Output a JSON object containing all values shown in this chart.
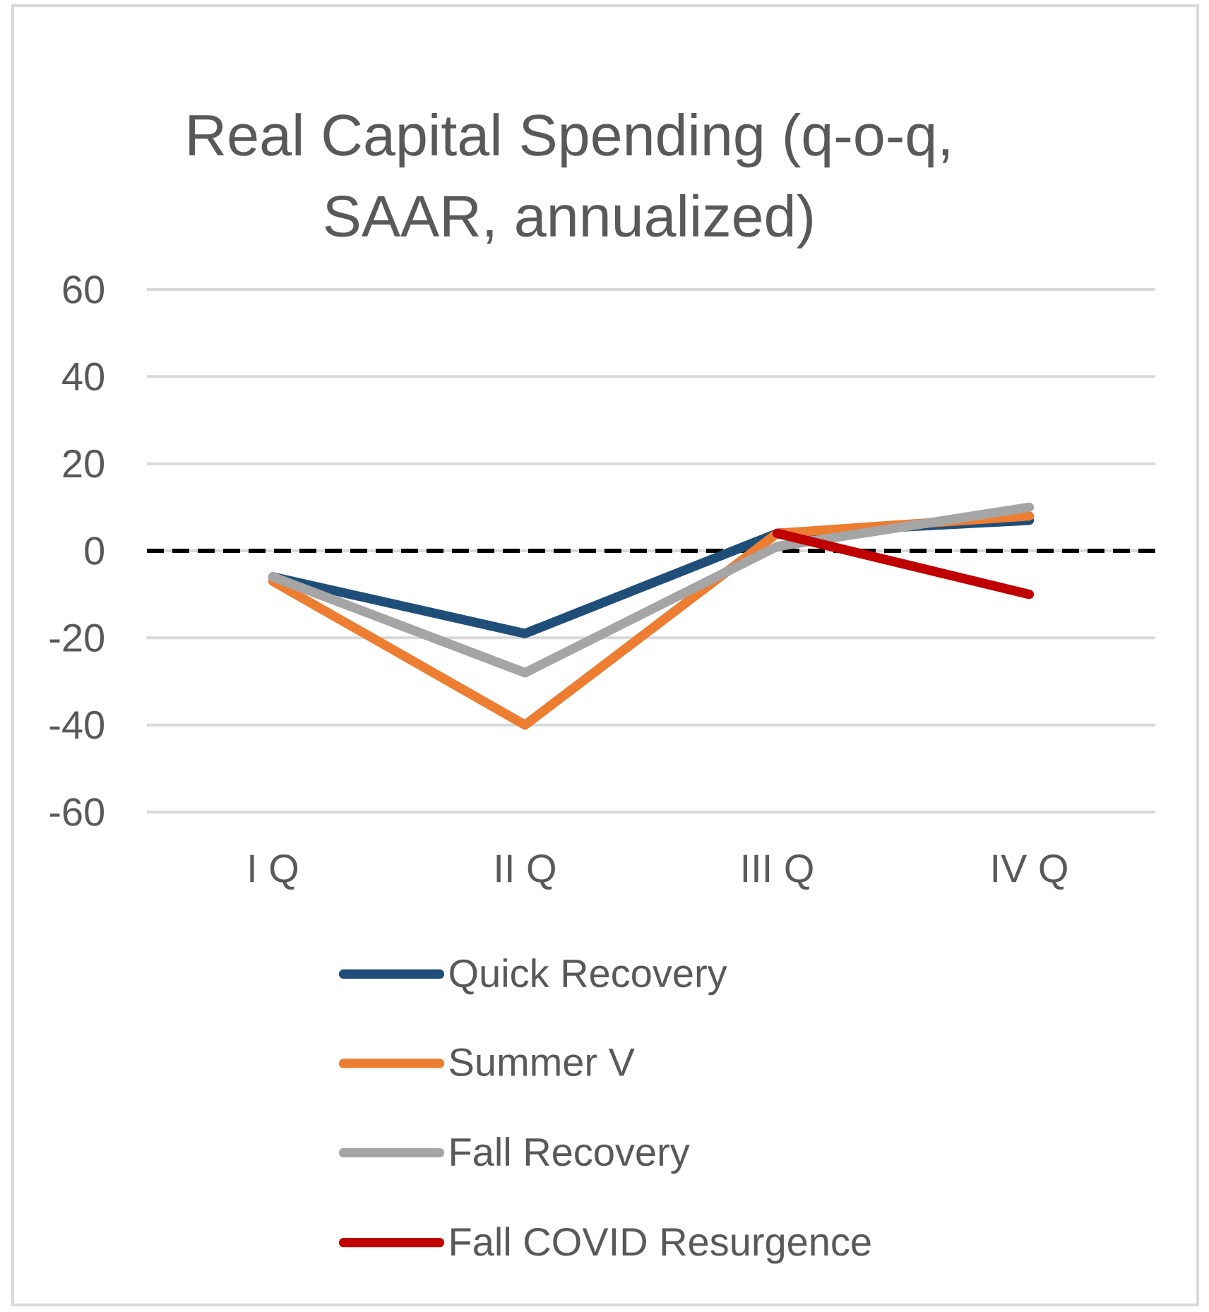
{
  "chart_data": {
    "type": "line",
    "title": "Real Capital Spending (q-o-q, SAAR, annualized)",
    "categories": [
      "I Q",
      "II Q",
      "III Q",
      "IV Q"
    ],
    "series": [
      {
        "name": "Quick Recovery",
        "color": "#1f4e79",
        "values": [
          -6,
          -19,
          4,
          7
        ]
      },
      {
        "name": "Summer V",
        "color": "#ed7d31",
        "values": [
          -7,
          -40,
          4,
          8
        ]
      },
      {
        "name": "Fall Recovery",
        "color": "#a5a5a5",
        "values": [
          -6,
          -28,
          1,
          10
        ]
      },
      {
        "name": "Fall COVID Resurgence",
        "color": "#c00000",
        "values": [
          null,
          null,
          4,
          -10
        ]
      }
    ],
    "ylim": [
      -60,
      60
    ],
    "yticks": [
      -60,
      -40,
      -20,
      0,
      20,
      40,
      60
    ],
    "grid": "y",
    "legend": "bottom",
    "ref_lines": [
      {
        "axis": "y",
        "value": 0,
        "color": "#000000",
        "line_style": "dashed"
      }
    ]
  }
}
